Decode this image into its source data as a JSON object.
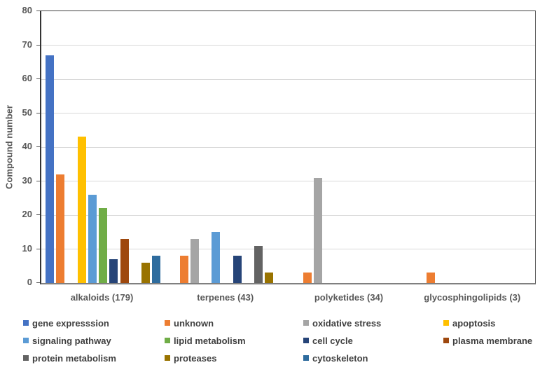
{
  "chart_data": {
    "type": "bar",
    "title": "",
    "xlabel": "",
    "ylabel": "Compound number",
    "ylim": [
      0,
      80
    ],
    "yticks": [
      0,
      10,
      20,
      30,
      40,
      50,
      60,
      70,
      80
    ],
    "grid": true,
    "legend_position": "bottom",
    "legend_columns": 4,
    "categories": [
      "alkaloids (179)",
      "terpenes (43)",
      "polyketides (34)",
      "glycosphingolipids (3)"
    ],
    "series": [
      {
        "name": "gene expresssion",
        "color": "#4472C4",
        "values": [
          67,
          0,
          0,
          0
        ]
      },
      {
        "name": "unknown",
        "color": "#ED7D31",
        "values": [
          32,
          8,
          3,
          3
        ]
      },
      {
        "name": "oxidative stress",
        "color": "#A5A5A5",
        "values": [
          0,
          13,
          31,
          0
        ]
      },
      {
        "name": "apoptosis",
        "color": "#FFC000",
        "values": [
          43,
          0,
          0,
          0
        ]
      },
      {
        "name": "signaling pathway",
        "color": "#5B9BD5",
        "values": [
          26,
          15,
          0,
          0
        ]
      },
      {
        "name": "lipid metabolism",
        "color": "#70AD47",
        "values": [
          22,
          0,
          0,
          0
        ]
      },
      {
        "name": "cell cycle",
        "color": "#264478",
        "values": [
          7,
          8,
          0,
          0
        ]
      },
      {
        "name": "plasma membrane",
        "color": "#9E480E",
        "values": [
          13,
          0,
          0,
          0
        ]
      },
      {
        "name": "protein metabolism",
        "color": "#636363",
        "values": [
          0,
          11,
          0,
          0
        ]
      },
      {
        "name": "proteases",
        "color": "#997300",
        "values": [
          6,
          3,
          0,
          0
        ]
      },
      {
        "name": "cytoskeleton",
        "color": "#2E6C9E",
        "values": [
          8,
          0,
          0,
          0
        ]
      }
    ]
  }
}
